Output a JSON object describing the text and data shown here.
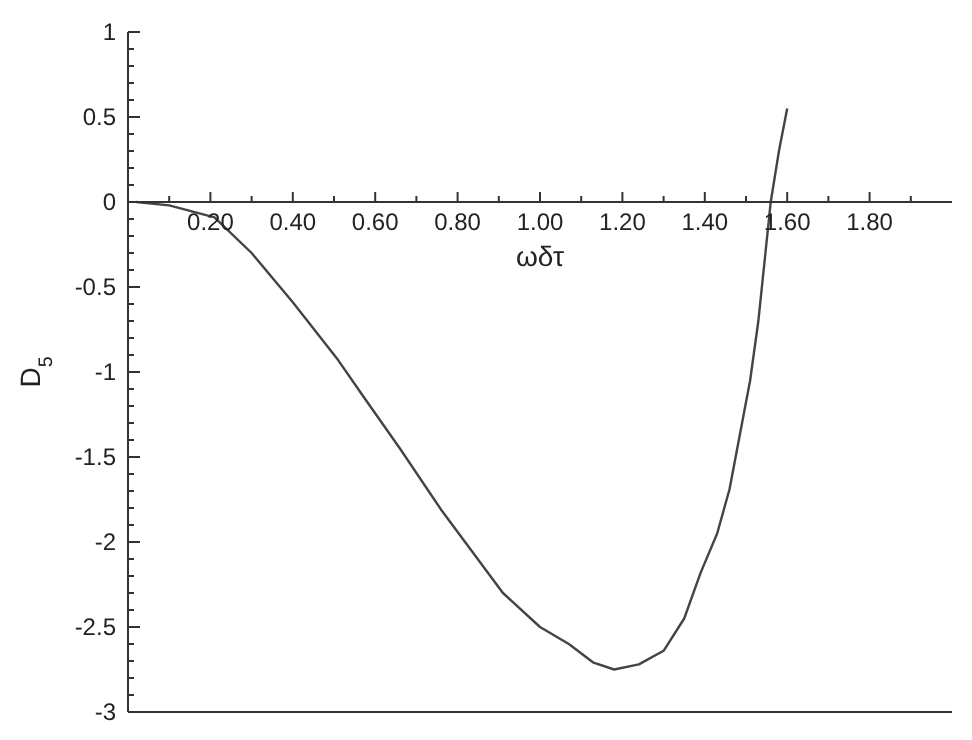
{
  "chart_data": {
    "type": "line",
    "xlabel": "ωδτ",
    "ylabel": "D$_{5}$",
    "x": [
      0.02,
      0.1,
      0.21,
      0.3,
      0.4,
      0.51,
      0.57,
      0.66,
      0.76,
      0.91,
      1.0,
      1.07,
      1.13,
      1.18,
      1.24,
      1.3,
      1.35,
      1.39,
      1.43,
      1.46,
      1.51,
      1.53,
      1.56,
      1.58,
      1.6
    ],
    "series": [
      {
        "color": "#444444",
        "values": [
          0,
          -0.02,
          -0.09,
          -0.3,
          -0.59,
          -0.93,
          -1.14,
          -1.45,
          -1.81,
          -2.3,
          -2.5,
          -2.6,
          -2.71,
          -2.75,
          -2.72,
          -2.64,
          -2.45,
          -2.18,
          -1.95,
          -1.69,
          -1.05,
          -0.7,
          0,
          0.3,
          0.55
        ]
      }
    ],
    "xlim": [
      0,
      2
    ],
    "xticks": [
      {
        "value": 0.1,
        "label": null
      },
      {
        "value": 0.2,
        "label": "0.20"
      },
      {
        "value": 0.3,
        "label": null
      },
      {
        "value": 0.4,
        "label": "0.40"
      },
      {
        "value": 0.5,
        "label": null
      },
      {
        "value": 0.6,
        "label": "0.60"
      },
      {
        "value": 0.7,
        "label": null
      },
      {
        "value": 0.8,
        "label": "0.80"
      },
      {
        "value": 0.9,
        "label": null
      },
      {
        "value": 1.0,
        "label": "1.00"
      },
      {
        "value": 1.1,
        "label": null
      },
      {
        "value": 1.2,
        "label": "1.20"
      },
      {
        "value": 1.3,
        "label": null
      },
      {
        "value": 1.4,
        "label": "1.40"
      },
      {
        "value": 1.5,
        "label": null
      },
      {
        "value": 1.6,
        "label": "1.60"
      },
      {
        "value": 1.7,
        "label": null
      },
      {
        "value": 1.8,
        "label": "1.80"
      },
      {
        "value": 1.9,
        "label": null
      }
    ],
    "ylim": [
      -3,
      1
    ],
    "yticks": [
      -3,
      {
        "value": -2.9,
        "label": null
      },
      {
        "value": -2.8,
        "label": null
      },
      {
        "value": -2.7,
        "label": null
      },
      {
        "value": -2.6,
        "label": null
      },
      -2.5,
      {
        "value": -2.4,
        "label": null
      },
      {
        "value": -2.3,
        "label": null
      },
      {
        "value": -2.2,
        "label": null
      },
      {
        "value": -2.1,
        "label": null
      },
      -2,
      {
        "value": -1.9,
        "label": null
      },
      {
        "value": -1.8,
        "label": null
      },
      {
        "value": -1.7,
        "label": null
      },
      {
        "value": -1.6,
        "label": null
      },
      -1.5,
      {
        "value": -1.4,
        "label": null
      },
      {
        "value": -1.3,
        "label": null
      },
      {
        "value": -1.2,
        "label": null
      },
      {
        "value": -1.1,
        "label": null
      },
      -1,
      {
        "value": -0.9,
        "label": null
      },
      {
        "value": -0.8,
        "label": null
      },
      {
        "value": -0.7,
        "label": null
      },
      {
        "value": -0.6,
        "label": null
      },
      -0.5,
      {
        "value": -0.4,
        "label": null
      },
      {
        "value": -0.3,
        "label": null
      },
      {
        "value": -0.2,
        "label": null
      },
      {
        "value": -0.1,
        "label": null
      },
      0,
      {
        "value": 0.1,
        "label": null
      },
      {
        "value": 0.2,
        "label": null
      },
      {
        "value": 0.3,
        "label": null
      },
      {
        "value": 0.4,
        "label": null
      },
      0.5,
      {
        "value": 0.6,
        "label": null
      },
      {
        "value": 0.7,
        "label": null
      },
      {
        "value": 0.8,
        "label": null
      },
      {
        "value": 0.9,
        "label": null
      },
      1
    ]
  }
}
